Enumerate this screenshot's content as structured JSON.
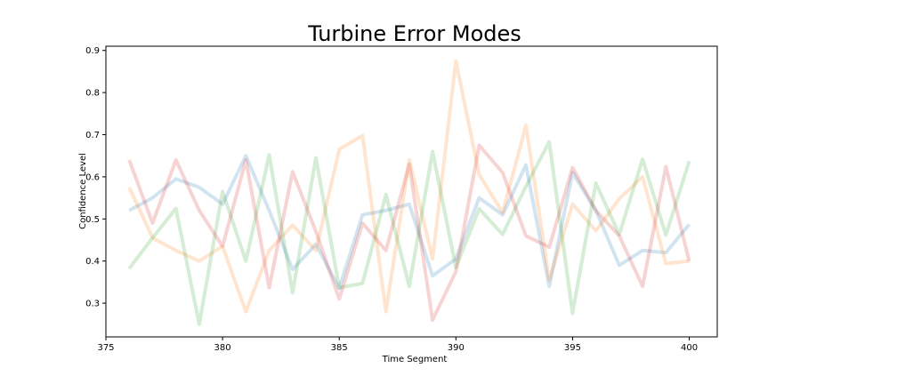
{
  "chart_data": {
    "type": "line",
    "title": "Turbine Error Modes",
    "xlabel": "Time Segment",
    "ylabel": "Confidence Level",
    "xlim": [
      375,
      401.2
    ],
    "ylim": [
      0.22,
      0.91
    ],
    "xticks": [
      375,
      380,
      385,
      390,
      395,
      400
    ],
    "yticks": [
      0.3,
      0.4,
      0.5,
      0.6,
      0.7,
      0.8,
      0.9
    ],
    "x": [
      376,
      377,
      378,
      379,
      380,
      381,
      382,
      383,
      384,
      385,
      386,
      387,
      388,
      389,
      390,
      391,
      392,
      393,
      394,
      395,
      396,
      397,
      398,
      399,
      400
    ],
    "series": [
      {
        "color": "#1f77b4",
        "opacity": 0.2,
        "values": [
          0.52,
          0.55,
          0.595,
          0.575,
          0.535,
          0.65,
          0.52,
          0.38,
          0.44,
          0.335,
          0.51,
          0.52,
          0.535,
          0.365,
          0.405,
          0.55,
          0.51,
          0.628,
          0.34,
          0.61,
          0.52,
          0.39,
          0.425,
          0.42,
          0.487
        ]
      },
      {
        "color": "#ff7f0e",
        "opacity": 0.2,
        "values": [
          0.575,
          0.455,
          0.425,
          0.4,
          0.435,
          0.28,
          0.425,
          0.485,
          0.425,
          0.665,
          0.698,
          0.28,
          0.64,
          0.405,
          0.875,
          0.605,
          0.515,
          0.722,
          0.355,
          0.535,
          0.472,
          0.548,
          0.6,
          0.394,
          0.4
        ]
      },
      {
        "color": "#2ca02c",
        "opacity": 0.2,
        "values": [
          0.382,
          0.455,
          0.525,
          0.25,
          0.565,
          0.4,
          0.652,
          0.325,
          0.645,
          0.337,
          0.347,
          0.558,
          0.34,
          0.66,
          0.385,
          0.524,
          0.463,
          0.577,
          0.683,
          0.276,
          0.585,
          0.463,
          0.642,
          0.462,
          0.637
        ]
      },
      {
        "color": "#d62728",
        "opacity": 0.2,
        "values": [
          0.64,
          0.49,
          0.64,
          0.52,
          0.435,
          0.64,
          0.337,
          0.612,
          0.47,
          0.31,
          0.49,
          0.425,
          0.63,
          0.26,
          0.375,
          0.675,
          0.61,
          0.46,
          0.433,
          0.622,
          0.52,
          0.46,
          0.34,
          0.624,
          0.4
        ]
      }
    ]
  }
}
